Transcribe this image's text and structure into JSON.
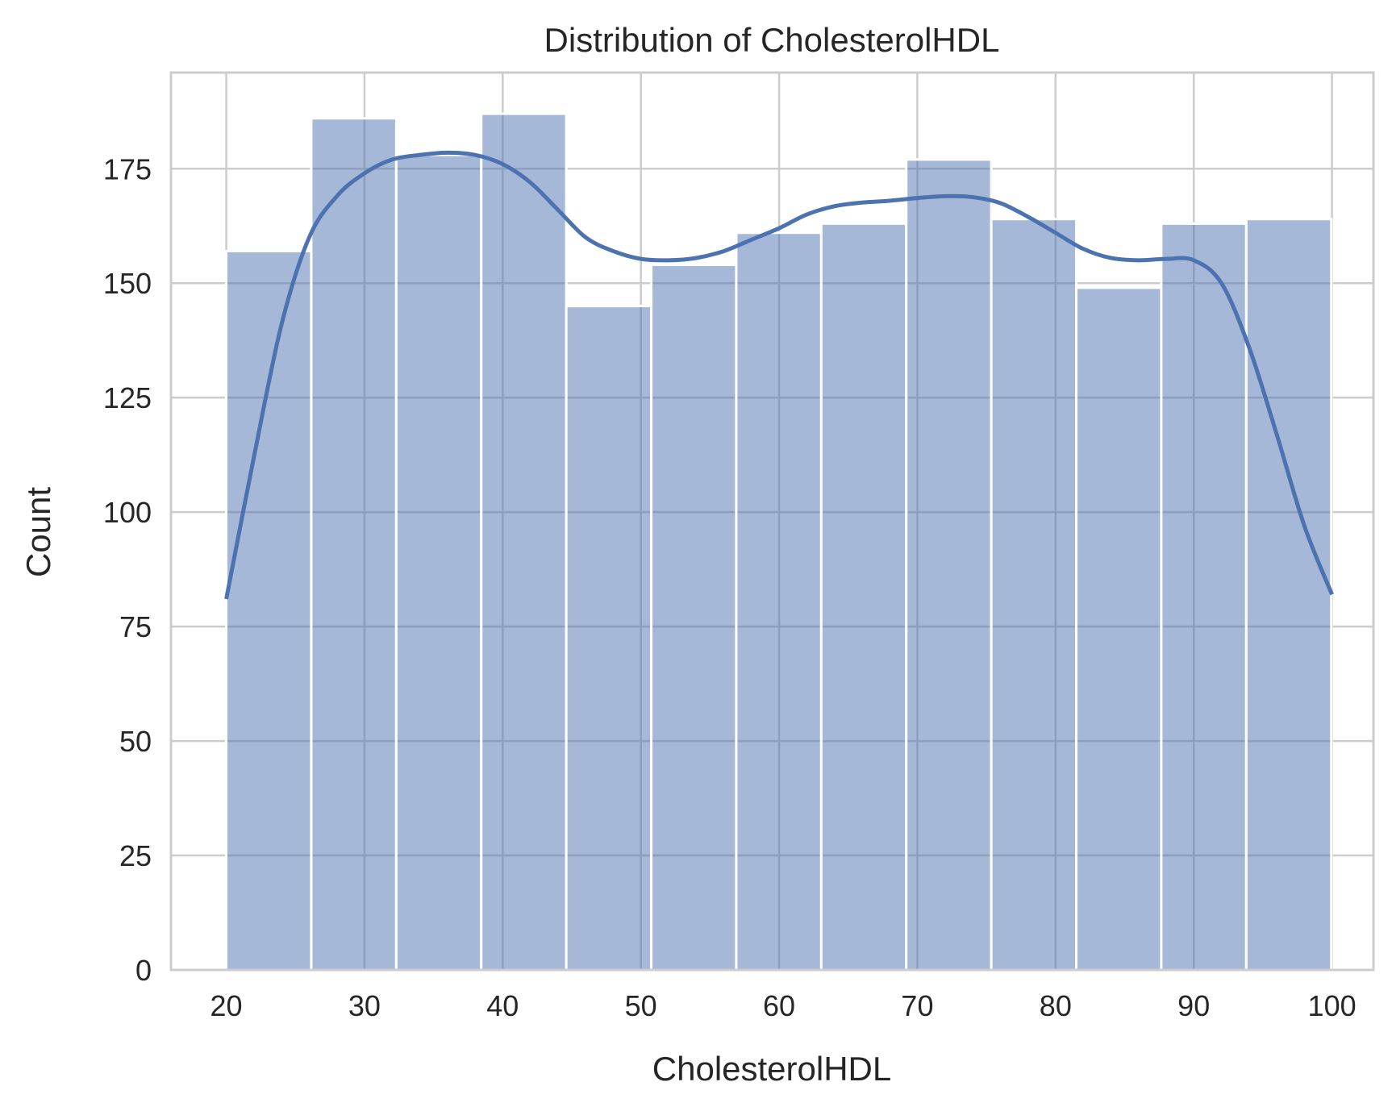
{
  "chart_data": {
    "type": "bar",
    "title": "Distribution of CholesterolHDL",
    "xlabel": "CholesterolHDL",
    "ylabel": "Count",
    "xlim": [
      16,
      103
    ],
    "ylim": [
      0,
      196
    ],
    "x_ticks": [
      20,
      30,
      40,
      50,
      60,
      70,
      80,
      90,
      100
    ],
    "y_ticks": [
      0,
      25,
      50,
      75,
      100,
      125,
      150,
      175
    ],
    "grid": true,
    "bin_edges": [
      20.0,
      26.15,
      32.3,
      38.45,
      44.6,
      50.75,
      56.9,
      63.05,
      69.2,
      75.35,
      81.5,
      87.65,
      93.8,
      99.95
    ],
    "values": [
      157,
      186,
      178,
      187,
      145,
      154,
      161,
      163,
      177,
      164,
      149,
      163,
      164
    ],
    "kde": {
      "x": [
        20,
        22,
        24,
        26,
        28,
        30,
        32,
        34,
        36,
        38,
        40,
        42,
        44,
        46,
        48,
        50,
        52,
        54,
        56,
        58,
        60,
        62,
        64,
        66,
        68,
        70,
        72,
        74,
        76,
        78,
        80,
        82,
        84,
        86,
        88,
        90,
        92,
        94,
        96,
        98,
        100
      ],
      "y": [
        81,
        112,
        141,
        160,
        169,
        174,
        177,
        178,
        178.5,
        178,
        176,
        172,
        166,
        160,
        157,
        155.3,
        155,
        155.5,
        157,
        159.5,
        162,
        165,
        166.8,
        167.6,
        168,
        168.6,
        169,
        168.8,
        167.5,
        164.5,
        161,
        157.5,
        155.5,
        155,
        155.3,
        155,
        150,
        136,
        117,
        97,
        82
      ]
    },
    "colors": {
      "bar_fill": "#4c72b0",
      "bar_opacity": 0.5,
      "kde_line": "#4c72b0",
      "grid": "#cccccc",
      "spine": "#cccccc",
      "text": "#262626"
    }
  }
}
